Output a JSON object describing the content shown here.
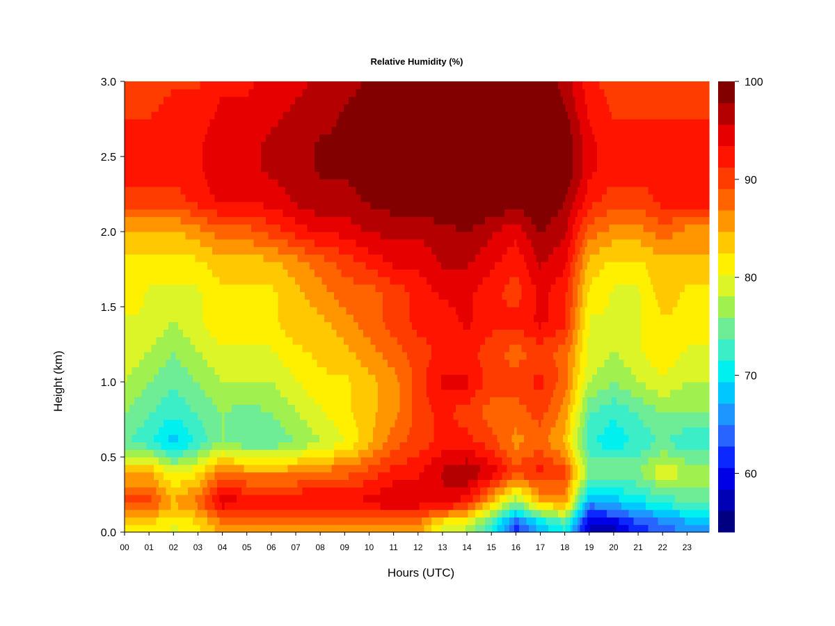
{
  "chart_data": {
    "type": "heatmap",
    "title": "Relative Humidity (%)",
    "xlabel": "Hours (UTC)",
    "ylabel": "Height (km)",
    "xlim": [
      0,
      23.9
    ],
    "ylim": [
      0,
      3.0
    ],
    "x_ticks": [
      "00",
      "01",
      "02",
      "03",
      "04",
      "05",
      "06",
      "07",
      "08",
      "09",
      "10",
      "11",
      "12",
      "13",
      "14",
      "15",
      "16",
      "17",
      "18",
      "19",
      "20",
      "21",
      "22",
      "23"
    ],
    "y_ticks": [
      "0.0",
      "0.5",
      "1.0",
      "1.5",
      "2.0",
      "2.5",
      "3.0"
    ],
    "colorbar": {
      "min": 54,
      "max": 100,
      "ticks": [
        "60",
        "70",
        "80",
        "90",
        "100"
      ],
      "levels": [
        "#000080",
        "#0000b4",
        "#0000e6",
        "#0a28ff",
        "#2864ff",
        "#1e96ff",
        "#00c8ff",
        "#00f0f0",
        "#3ceec8",
        "#6eec96",
        "#a0f050",
        "#dcf528",
        "#fff000",
        "#ffc800",
        "#ff9600",
        "#ff6400",
        "#ff3c00",
        "#ff1400",
        "#e60000",
        "#b40000",
        "#820000"
      ]
    },
    "z_unit": "%",
    "hours": [
      0,
      1,
      2,
      3,
      4,
      5,
      6,
      7,
      8,
      9,
      10,
      11,
      12,
      13,
      14,
      15,
      16,
      17,
      18,
      19,
      20,
      21,
      22,
      23
    ],
    "heights_km": [
      0.05,
      0.2,
      0.4,
      0.6,
      0.8,
      1.0,
      1.2,
      1.4,
      1.6,
      1.8,
      2.0,
      2.2,
      2.4,
      2.6,
      2.8,
      3.0
    ],
    "z_values": [
      [
        82,
        82,
        80,
        82,
        86,
        86,
        86,
        86,
        86,
        86,
        86,
        86,
        86,
        80,
        78,
        72,
        62,
        68,
        72,
        58,
        58,
        62,
        64,
        66
      ],
      [
        90,
        90,
        85,
        88,
        95,
        94,
        93,
        94,
        94,
        94,
        94,
        96,
        95,
        95,
        92,
        84,
        76,
        84,
        86,
        66,
        68,
        70,
        72,
        74
      ],
      [
        84,
        85,
        80,
        82,
        88,
        86,
        86,
        86,
        88,
        88,
        90,
        92,
        93,
        96,
        98,
        95,
        90,
        92,
        90,
        76,
        76,
        76,
        80,
        78
      ],
      [
        74,
        72,
        68,
        72,
        76,
        74,
        74,
        76,
        78,
        80,
        84,
        88,
        90,
        92,
        92,
        90,
        86,
        88,
        84,
        72,
        70,
        72,
        74,
        72
      ],
      [
        76,
        74,
        72,
        74,
        76,
        75,
        76,
        78,
        80,
        82,
        84,
        86,
        90,
        92,
        90,
        88,
        88,
        90,
        86,
        74,
        72,
        74,
        76,
        76
      ],
      [
        78,
        76,
        74,
        76,
        78,
        78,
        78,
        80,
        82,
        82,
        84,
        86,
        90,
        94,
        94,
        90,
        90,
        92,
        88,
        78,
        76,
        78,
        80,
        78
      ],
      [
        80,
        78,
        76,
        78,
        80,
        80,
        80,
        82,
        83,
        84,
        86,
        88,
        90,
        92,
        92,
        90,
        88,
        90,
        88,
        80,
        78,
        80,
        82,
        80
      ],
      [
        80,
        80,
        78,
        80,
        82,
        82,
        82,
        84,
        84,
        86,
        88,
        90,
        92,
        92,
        94,
        92,
        92,
        94,
        92,
        80,
        80,
        80,
        82,
        82
      ],
      [
        82,
        80,
        80,
        80,
        82,
        82,
        82,
        84,
        86,
        88,
        88,
        90,
        92,
        94,
        94,
        92,
        90,
        94,
        92,
        82,
        80,
        80,
        84,
        82
      ],
      [
        82,
        82,
        82,
        82,
        84,
        84,
        84,
        86,
        88,
        90,
        92,
        94,
        94,
        96,
        96,
        94,
        92,
        96,
        94,
        84,
        82,
        82,
        84,
        84
      ],
      [
        84,
        84,
        84,
        86,
        88,
        88,
        90,
        92,
        94,
        94,
        96,
        96,
        96,
        97,
        98,
        96,
        94,
        98,
        96,
        88,
        86,
        86,
        88,
        86
      ],
      [
        90,
        90,
        90,
        92,
        94,
        94,
        94,
        96,
        97,
        97,
        98,
        99,
        99,
        100,
        100,
        100,
        99,
        100,
        98,
        92,
        90,
        90,
        92,
        92
      ],
      [
        92,
        92,
        92,
        93,
        95,
        95,
        96,
        97,
        98,
        98,
        99,
        100,
        100,
        100,
        100,
        100,
        100,
        100,
        100,
        94,
        92,
        92,
        92,
        92
      ],
      [
        92,
        92,
        93,
        93,
        95,
        95,
        96,
        97,
        98,
        98,
        99,
        100,
        100,
        100,
        100,
        100,
        100,
        100,
        100,
        94,
        92,
        92,
        92,
        92
      ],
      [
        91,
        91,
        92,
        92,
        94,
        94,
        95,
        96,
        97,
        98,
        99,
        100,
        100,
        100,
        100,
        100,
        100,
        100,
        98,
        93,
        91,
        91,
        91,
        91
      ],
      [
        90,
        90,
        91,
        91,
        93,
        93,
        94,
        95,
        96,
        97,
        98,
        99,
        100,
        100,
        100,
        100,
        100,
        100,
        97,
        92,
        90,
        90,
        90,
        90
      ]
    ]
  }
}
